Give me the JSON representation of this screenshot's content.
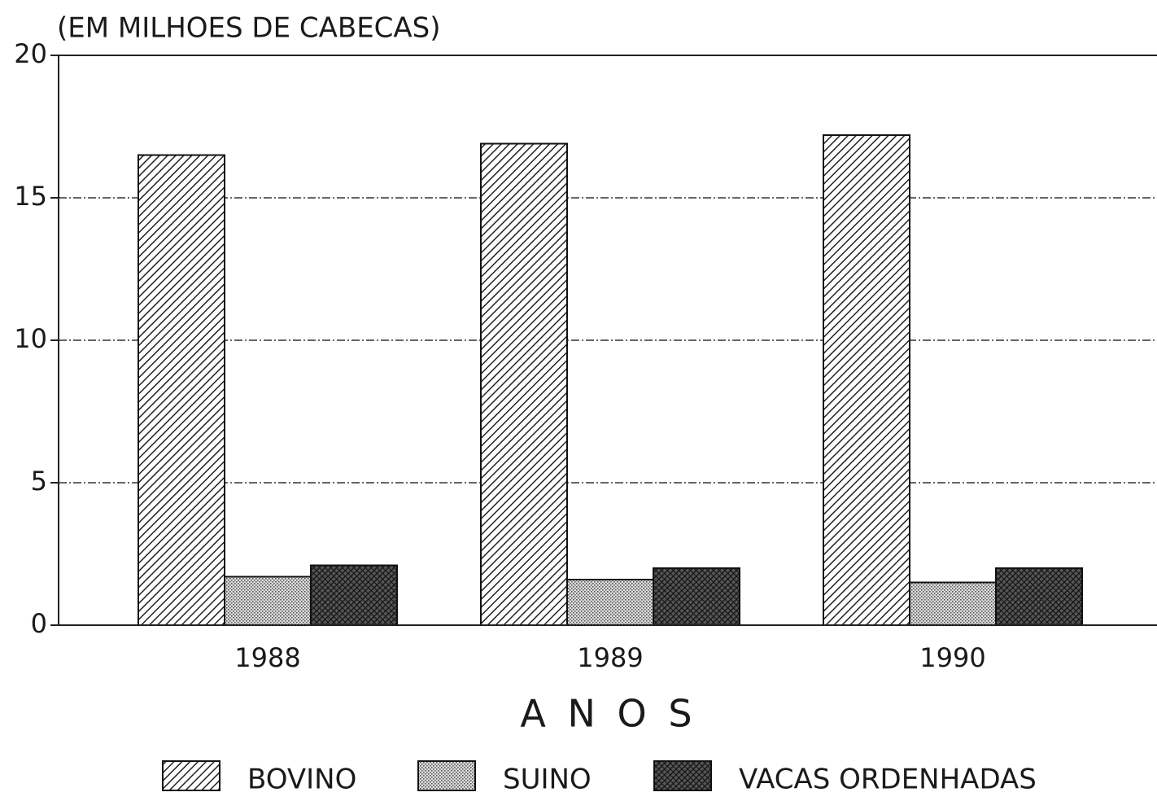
{
  "chart_data": {
    "type": "bar",
    "ylabel": "(EM MILHOES DE CABECAS)",
    "xlabel": "A N O S",
    "categories": [
      "1988",
      "1989",
      "1990"
    ],
    "series": [
      {
        "name": "BOVINO",
        "color": "#222222",
        "pattern": "diagonal",
        "values": [
          16.5,
          16.9,
          17.2
        ]
      },
      {
        "name": "SUINO",
        "color": "#555555",
        "pattern": "dots",
        "values": [
          1.7,
          1.6,
          1.5
        ]
      },
      {
        "name": "VACAS ORDENHADAS",
        "color": "#111111",
        "pattern": "crosshatch",
        "values": [
          2.1,
          2.0,
          2.0
        ]
      }
    ],
    "ylim": [
      0,
      20
    ],
    "yticks": [
      0,
      5,
      10,
      15,
      20
    ],
    "grid": true,
    "legend": "bottom"
  }
}
